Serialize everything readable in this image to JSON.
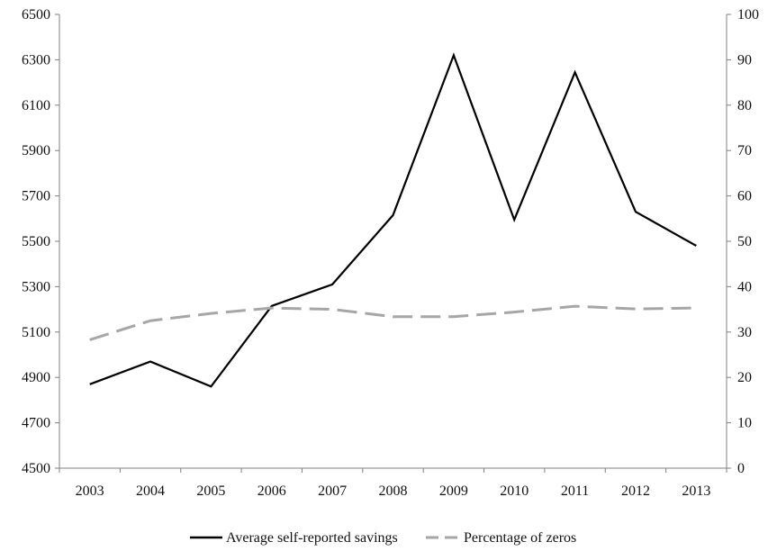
{
  "chart_data": {
    "type": "line",
    "title": "",
    "xlabel": "",
    "ylabel_left": "",
    "ylabel_right": "",
    "categories": [
      "2003",
      "2004",
      "2005",
      "2006",
      "2007",
      "2008",
      "2009",
      "2010",
      "2011",
      "2012",
      "2013"
    ],
    "y_left_ticks": [
      "4500",
      "4700",
      "4900",
      "5100",
      "5300",
      "5500",
      "5700",
      "5900",
      "6100",
      "6300",
      "6500"
    ],
    "y_right_ticks": [
      "0",
      "10",
      "20",
      "30",
      "40",
      "50",
      "60",
      "70",
      "80",
      "90",
      "100"
    ],
    "ylim_left": [
      4500,
      6500
    ],
    "ylim_right": [
      0,
      100
    ],
    "grid": false,
    "legend_position": "bottom",
    "series": [
      {
        "name": "Average self-reported savings",
        "axis": "left",
        "style": "solid",
        "color": "#000000",
        "values": [
          4870,
          4970,
          4860,
          5215,
          5310,
          5615,
          6320,
          5595,
          6245,
          5630,
          5480
        ]
      },
      {
        "name": "Percentage of zeros",
        "axis": "right",
        "style": "dashed",
        "color": "#a6a6a6",
        "values": [
          28.3,
          32.5,
          34.1,
          35.3,
          35.0,
          33.4,
          33.4,
          34.4,
          35.7,
          35.1,
          35.3
        ]
      }
    ]
  }
}
